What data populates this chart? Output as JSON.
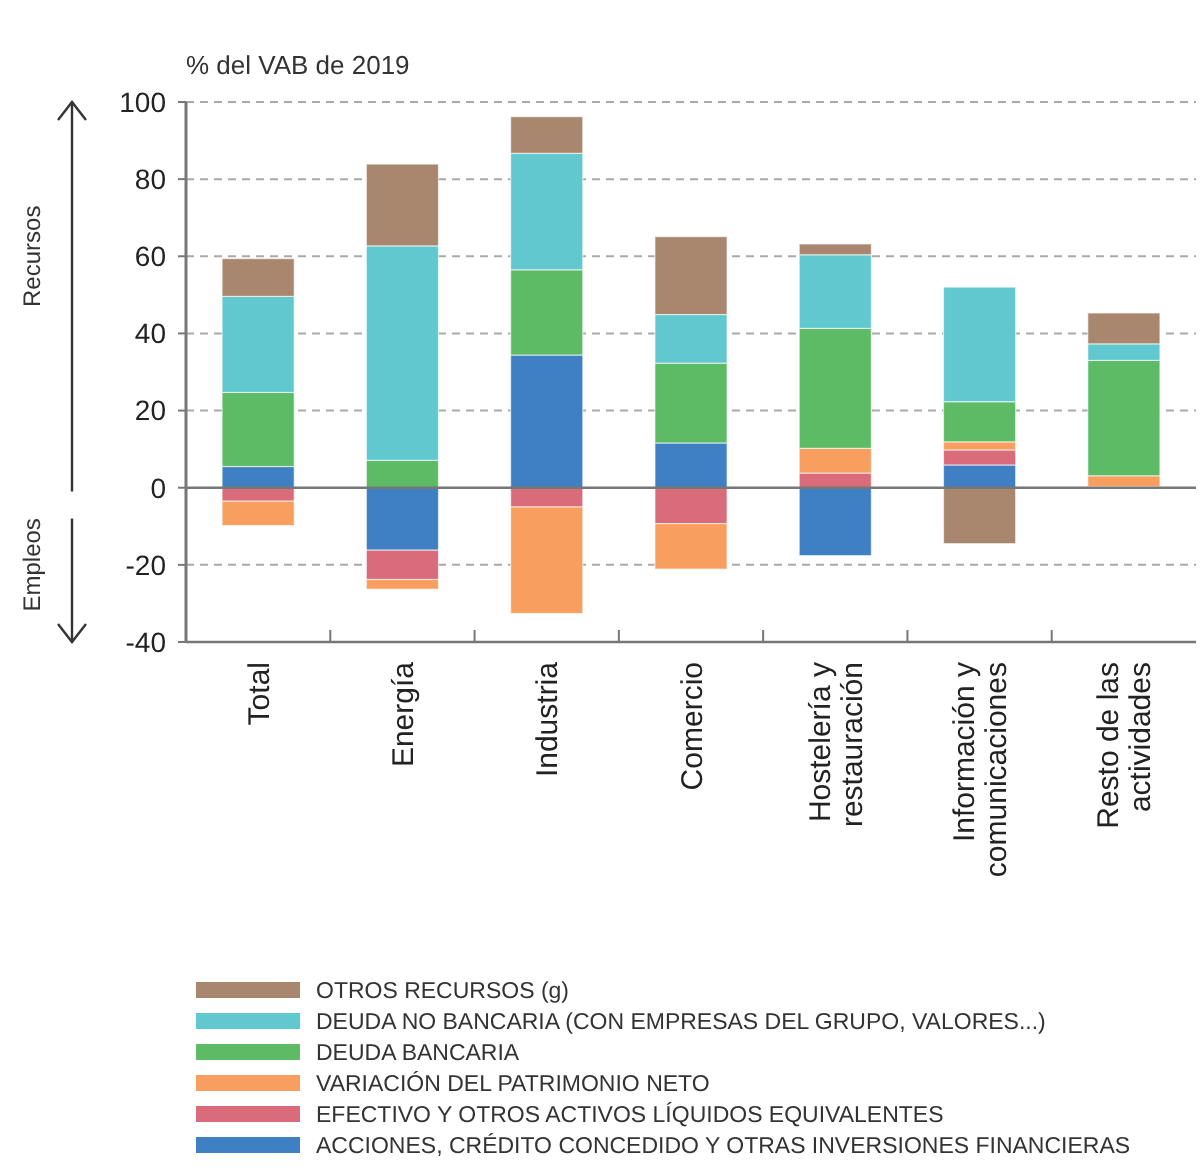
{
  "chart_data": {
    "type": "bar",
    "stacked": true,
    "ylabel": "% del VAB de 2019",
    "categories": [
      "Total",
      "Energía",
      "Industria",
      "Comercio",
      "Hostelería y restauración",
      "Información y comunicaciones",
      "Resto de las actividades"
    ],
    "series": [
      {
        "name": "ACCIONES, CRÉDITO CONCEDIDO Y OTRAS INVERSIONES FINANCIERAS",
        "color": "#3f7fc3",
        "values": [
          5.5,
          -16.2,
          34.4,
          11.6,
          -17.6,
          5.9,
          0.3
        ]
      },
      {
        "name": "EFECTIVO Y OTROS ACTIVOS LÍQUIDOS EQUIVALENTES",
        "color": "#d96b7a",
        "values": [
          -3.5,
          -7.6,
          -5.0,
          -9.3,
          3.8,
          3.9,
          null
        ]
      },
      {
        "name": "VARIACIÓN DEL PATRIMONIO NETO",
        "color": "#f89e5f",
        "values": [
          -6.3,
          -2.5,
          -27.6,
          -11.8,
          6.4,
          2.1,
          2.8
        ]
      },
      {
        "name": "DEUDA BANCARIA",
        "color": "#5dbb66",
        "values": [
          19.2,
          7.1,
          22.1,
          20.7,
          31.1,
          10.4,
          29.9
        ]
      },
      {
        "name": "DEUDA NO BANCARIA (CON EMPRESAS DEL GRUPO, VALORES...)",
        "color": "#62c8d0",
        "values": [
          24.9,
          55.6,
          30.2,
          12.6,
          19.1,
          29.7,
          4.3
        ]
      },
      {
        "name": "OTROS RECURSOS (g)",
        "color": "#a9876e",
        "values": [
          9.8,
          21.2,
          9.5,
          20.2,
          2.8,
          -14.5,
          8.0
        ]
      }
    ],
    "ylim": [
      -40,
      100
    ],
    "yticks": [
      -40,
      -20,
      0,
      20,
      40,
      60,
      80,
      100
    ],
    "grid": "y",
    "legend": "bottom",
    "annotations": [
      "Recursos",
      "Empleos"
    ]
  }
}
